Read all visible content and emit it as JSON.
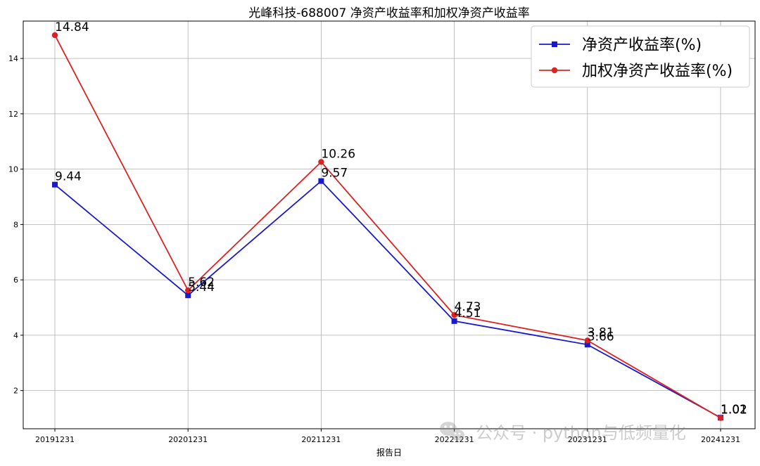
{
  "chart_data": {
    "type": "line",
    "title": "光峰科技-688007 净资产收益率和加权净资产收益率",
    "xlabel": "报告日",
    "ylabel": "",
    "categories": [
      "20191231",
      "20201231",
      "20211231",
      "20221231",
      "20231231",
      "20241231"
    ],
    "ylim": [
      0.62,
      15.35
    ],
    "yticks": [
      2,
      4,
      6,
      8,
      10,
      12,
      14
    ],
    "grid": true,
    "legend_position": "top-right",
    "series": [
      {
        "name": "净资产收益率(%)",
        "values": [
          9.44,
          5.44,
          9.57,
          4.51,
          3.66,
          1.02
        ],
        "labels": [
          "9.44",
          "5.44",
          "9.57",
          "4.51",
          "3.66",
          "1.02"
        ],
        "color": "#1a1acc",
        "marker": "square"
      },
      {
        "name": "加权净资产收益率(%)",
        "values": [
          14.84,
          5.62,
          10.26,
          4.73,
          3.81,
          1.01
        ],
        "labels": [
          "14.84",
          "5.62",
          "10.26",
          "4.73",
          "3.81",
          "1.01"
        ],
        "color": "#dd2222",
        "marker": "circle"
      }
    ]
  },
  "watermark": {
    "text": "公众号 · python与低频量化"
  }
}
